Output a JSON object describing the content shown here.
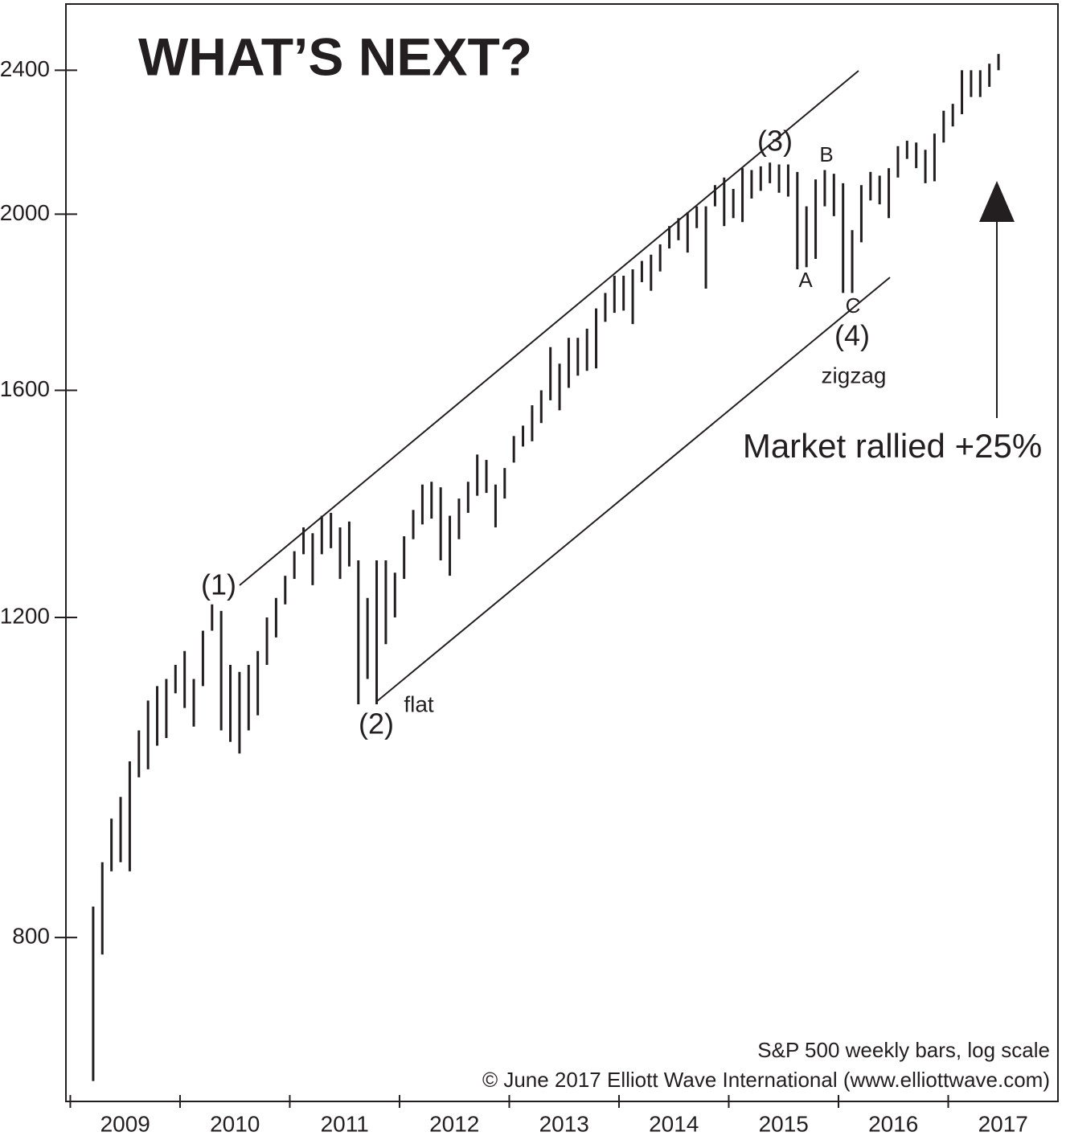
{
  "chart_data": {
    "type": "range-bar",
    "title": "WHAT’S NEXT?",
    "footnotes": [
      "S&P 500 weekly bars, log scale",
      "© June 2017 Elliott Wave International (www.elliottwave.com)"
    ],
    "annotations": [
      "(1)",
      "(2)",
      "flat",
      "(3)",
      "B",
      "A",
      "C",
      "(4)",
      "zigzag",
      "Market rallied +25%"
    ],
    "log_scale": true,
    "color": "#231f20",
    "ylim": [
      650,
      2610
    ],
    "yticks": [
      800,
      1200,
      1600,
      2000,
      2400
    ],
    "xlim": [
      2008.96,
      2018
    ],
    "xticks": [
      2009,
      2010,
      2011,
      2012,
      2013,
      2014,
      2015,
      2016,
      2017,
      2018
    ],
    "year_labels": [
      "2009",
      "2010",
      "2011",
      "2012",
      "2013",
      "2014",
      "2015",
      "2016",
      "2017"
    ],
    "x": [
      "2009-03",
      "2009-04",
      "2009-05",
      "2009-06",
      "2009-07",
      "2009-08",
      "2009-09",
      "2009-10",
      "2009-11",
      "2009-12",
      "2010-01",
      "2010-02",
      "2010-03",
      "2010-04",
      "2010-05",
      "2010-06",
      "2010-07",
      "2010-08",
      "2010-09",
      "2010-10",
      "2010-11",
      "2010-12",
      "2011-01",
      "2011-02",
      "2011-03",
      "2011-04",
      "2011-05",
      "2011-06",
      "2011-07",
      "2011-08",
      "2011-09",
      "2011-10",
      "2011-11",
      "2011-12",
      "2012-01",
      "2012-02",
      "2012-03",
      "2012-04",
      "2012-05",
      "2012-06",
      "2012-07",
      "2012-08",
      "2012-09",
      "2012-10",
      "2012-11",
      "2012-12",
      "2013-01",
      "2013-02",
      "2013-03",
      "2013-04",
      "2013-05",
      "2013-06",
      "2013-07",
      "2013-08",
      "2013-09",
      "2013-10",
      "2013-11",
      "2013-12",
      "2014-01",
      "2014-02",
      "2014-03",
      "2014-04",
      "2014-05",
      "2014-06",
      "2014-07",
      "2014-08",
      "2014-09",
      "2014-10",
      "2014-11",
      "2014-12",
      "2015-01",
      "2015-02",
      "2015-03",
      "2015-04",
      "2015-05",
      "2015-06",
      "2015-07",
      "2015-08",
      "2015-09",
      "2015-10",
      "2015-11",
      "2015-12",
      "2016-01",
      "2016-02",
      "2016-03",
      "2016-04",
      "2016-05",
      "2016-06",
      "2016-07",
      "2016-08",
      "2016-09",
      "2016-10",
      "2016-11",
      "2016-12",
      "2017-01",
      "2017-02",
      "2017-03",
      "2017-04",
      "2017-05",
      "2017-06"
    ],
    "high": [
      832,
      880,
      930,
      956,
      1000,
      1040,
      1080,
      1100,
      1110,
      1130,
      1150,
      1110,
      1180,
      1220,
      1210,
      1130,
      1120,
      1130,
      1150,
      1200,
      1230,
      1265,
      1305,
      1345,
      1335,
      1365,
      1370,
      1345,
      1355,
      1290,
      1230,
      1290,
      1290,
      1270,
      1330,
      1375,
      1420,
      1425,
      1415,
      1365,
      1395,
      1425,
      1475,
      1465,
      1420,
      1450,
      1510,
      1530,
      1570,
      1600,
      1690,
      1655,
      1710,
      1710,
      1730,
      1775,
      1810,
      1850,
      1850,
      1865,
      1885,
      1900,
      1925,
      1970,
      1990,
      2005,
      2020,
      2020,
      2075,
      2095,
      2065,
      2120,
      2115,
      2125,
      2135,
      2130,
      2130,
      2110,
      2020,
      2090,
      2115,
      2105,
      2080,
      1960,
      2075,
      2110,
      2100,
      2120,
      2180,
      2195,
      2190,
      2170,
      2215,
      2280,
      2300,
      2400,
      2400,
      2400,
      2420,
      2450
    ],
    "low": [
      667,
      783,
      870,
      880,
      870,
      980,
      990,
      1020,
      1030,
      1090,
      1070,
      1045,
      1100,
      1180,
      1040,
      1025,
      1010,
      1040,
      1060,
      1130,
      1170,
      1220,
      1260,
      1300,
      1250,
      1300,
      1310,
      1260,
      1280,
      1075,
      1110,
      1075,
      1160,
      1200,
      1260,
      1325,
      1350,
      1360,
      1290,
      1265,
      1325,
      1370,
      1400,
      1405,
      1345,
      1395,
      1460,
      1490,
      1500,
      1535,
      1580,
      1560,
      1605,
      1630,
      1640,
      1645,
      1745,
      1765,
      1770,
      1740,
      1835,
      1815,
      1860,
      1915,
      1935,
      1905,
      1965,
      1820,
      2020,
      1970,
      1990,
      1980,
      2040,
      2060,
      2080,
      2055,
      2045,
      1865,
      1870,
      1890,
      2020,
      1995,
      1810,
      1810,
      1930,
      2035,
      2025,
      1990,
      2095,
      2145,
      2120,
      2080,
      2085,
      2190,
      2235,
      2270,
      2320,
      2320,
      2350,
      2400
    ]
  }
}
